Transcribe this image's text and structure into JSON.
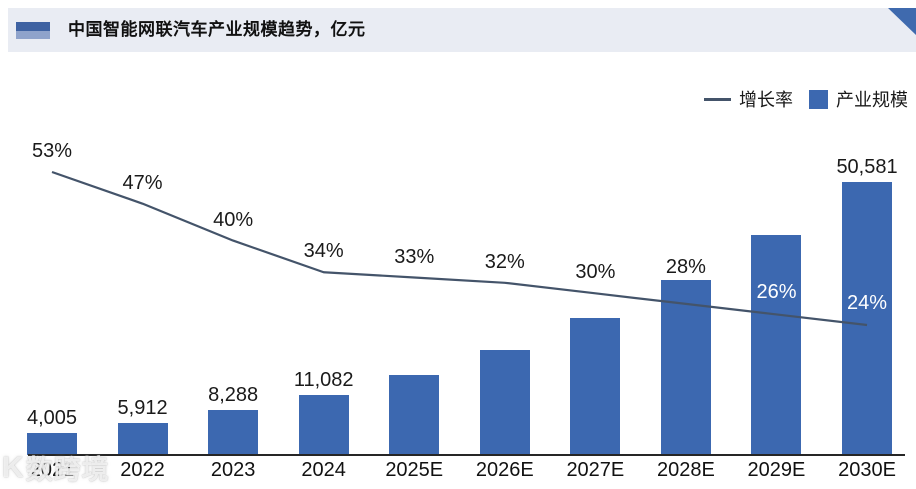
{
  "header": {
    "title": "中国智能网联汽车产业规模趋势，亿元",
    "band_bg": "#E9ECF3",
    "icon_dark": "#3E62A2",
    "icon_light": "#8FA3CB",
    "corner_triangle_color": "#3F6AAE"
  },
  "legend": {
    "growth_label": "增长率",
    "scale_label": "产业规模"
  },
  "watermark": {
    "logo": "K",
    "text": "数跨境"
  },
  "chart_data": {
    "type": "bar",
    "title": "中国智能网联汽车产业规模趋势，亿元",
    "categories": [
      "2021",
      "2022",
      "2023",
      "2024",
      "2025E",
      "2026E",
      "2027E",
      "2028E",
      "2029E",
      "2030E"
    ],
    "series": [
      {
        "name": "产业规模",
        "type": "bar",
        "unit": "亿元",
        "values": [
          4005,
          5912,
          8288,
          11082,
          14739,
          19456,
          25293,
          32375,
          40793,
          50581
        ],
        "value_labels": [
          "4,005",
          "5,912",
          "8,288",
          "11,082",
          null,
          null,
          null,
          null,
          null,
          "50,581"
        ],
        "color": "#3C68B0"
      },
      {
        "name": "增长率",
        "type": "line",
        "unit": "%",
        "values": [
          53,
          47,
          40,
          34,
          33,
          32,
          30,
          28,
          26,
          24
        ],
        "value_labels": [
          "53%",
          "47%",
          "40%",
          "34%",
          "33%",
          "32%",
          "30%",
          "28%",
          "26%",
          "24%"
        ],
        "label_colors": [
          "#1A1A1A",
          "#1A1A1A",
          "#1A1A1A",
          "#1A1A1A",
          "#1A1A1A",
          "#1A1A1A",
          "#1A1A1A",
          "#1A1A1A",
          "#FFFFFF",
          "#FFFFFF"
        ],
        "color": "#44546A"
      }
    ],
    "ylim": [
      0,
      52000
    ],
    "y2lim": [
      0,
      60
    ],
    "grid": false,
    "legend_position": "top-right",
    "axis_color": "#262626"
  }
}
